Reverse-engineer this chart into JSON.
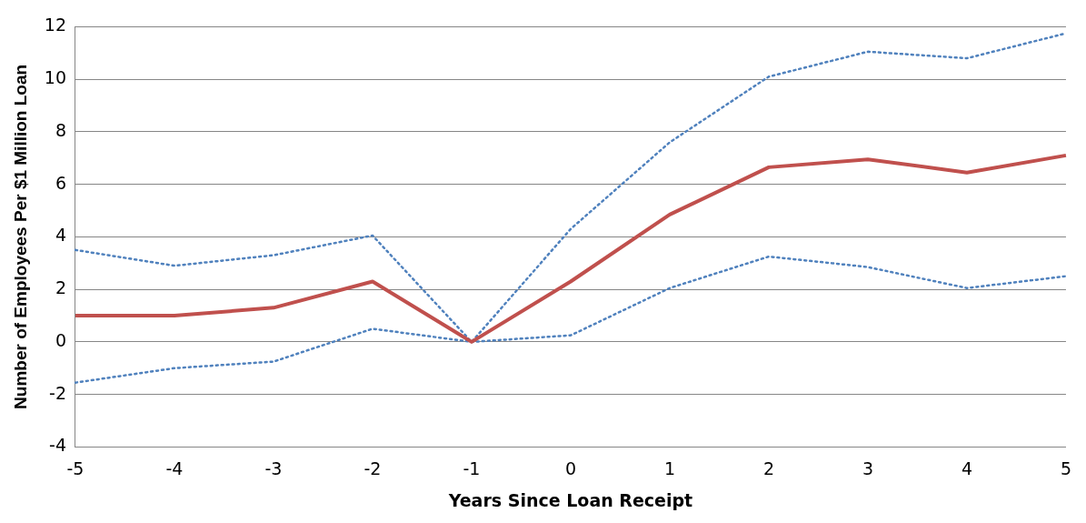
{
  "chart_data": {
    "type": "line",
    "xlabel": "Years Since Loan Receipt",
    "ylabel": "Number of Employees Per $1 Million Loan",
    "categories": [
      "-5",
      "-4",
      "-3",
      "-2",
      "-1",
      "0",
      "1",
      "2",
      "3",
      "4",
      "5"
    ],
    "ylim": [
      -4,
      12
    ],
    "yticks": [
      -4,
      -2,
      0,
      2,
      4,
      6,
      8,
      10,
      12
    ],
    "grid": "y",
    "legend": false,
    "marker": "none",
    "series": [
      {
        "color": "#c0504d",
        "line_style": "solid",
        "values": [
          1.0,
          1.0,
          1.3,
          2.3,
          0,
          2.3,
          4.85,
          6.65,
          6.95,
          6.45,
          7.1
        ]
      },
      {
        "color": "#4f81bd",
        "line_style": "dotted",
        "values": [
          3.5,
          2.9,
          3.3,
          4.05,
          0,
          4.3,
          7.6,
          10.1,
          11.05,
          10.8,
          11.75
        ]
      },
      {
        "color": "#4f81bd",
        "line_style": "dotted",
        "values": [
          -1.55,
          -1.0,
          -0.75,
          0.5,
          0,
          0.25,
          2.05,
          3.25,
          2.85,
          2.05,
          2.5
        ]
      }
    ]
  }
}
